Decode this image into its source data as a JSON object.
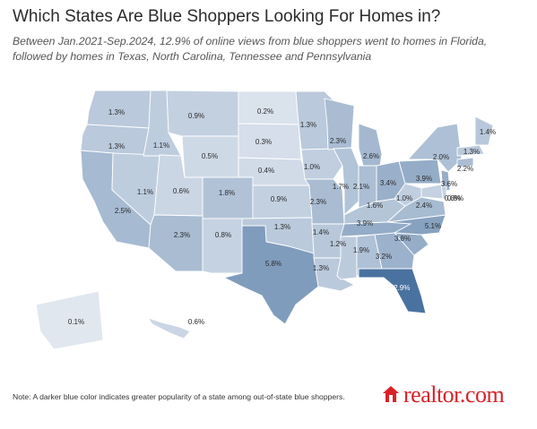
{
  "title": "Which States Are Blue Shoppers Looking For Homes in?",
  "subtitle": "Between Jan.2021-Sep.2024, 12.9% of online views from blue shoppers went to homes in Florida, followed by homes in Texas, North Carolina, Tennessee and Pennsylvania",
  "note": "Note: A darker blue color indicates greater popularity of a state among out-of-state blue shoppers.",
  "logo": {
    "text": "realtor.com",
    "icon": "house-icon",
    "color": "#d92228"
  },
  "color_scale": {
    "low": "#eef2f7",
    "high": "#4a72a0",
    "max_value": 12.9
  },
  "regions": {
    "WA": {
      "label": "1.3%",
      "value": 1.3
    },
    "OR": {
      "label": "1.3%",
      "value": 1.3
    },
    "CA": {
      "label": "2.5%",
      "value": 2.5
    },
    "NV": {
      "label": "1.1%",
      "value": 1.1
    },
    "ID": {
      "label": "1.1%",
      "value": 1.1
    },
    "MT": {
      "label": "0.9%",
      "value": 0.9
    },
    "WY": {
      "label": "0.5%",
      "value": 0.5
    },
    "UT": {
      "label": "0.6%",
      "value": 0.6
    },
    "AZ": {
      "label": "2.3%",
      "value": 2.3
    },
    "CO": {
      "label": "1.8%",
      "value": 1.8
    },
    "NM": {
      "label": "0.8%",
      "value": 0.8
    },
    "ND": {
      "label": "0.2%",
      "value": 0.2
    },
    "SD": {
      "label": "0.3%",
      "value": 0.3
    },
    "NE": {
      "label": "0.4%",
      "value": 0.4
    },
    "KS": {
      "label": "0.9%",
      "value": 0.9
    },
    "OK": {
      "label": "1.3%",
      "value": 1.3
    },
    "TX": {
      "label": "5.8%",
      "value": 5.8
    },
    "MN": {
      "label": "1.3%",
      "value": 1.3
    },
    "IA": {
      "label": "1.0%",
      "value": 1.0
    },
    "MO": {
      "label": "2.3%",
      "value": 2.3
    },
    "AR": {
      "label": "1.4%",
      "value": 1.4
    },
    "LA": {
      "label": "1.3%",
      "value": 1.3
    },
    "WI": {
      "label": "2.3%",
      "value": 2.3
    },
    "IL": {
      "label": "1.7%",
      "value": 1.7
    },
    "MI": {
      "label": "2.6%",
      "value": 2.6
    },
    "IN": {
      "label": "2.1%",
      "value": 2.1
    },
    "OH": {
      "label": "3.4%",
      "value": 3.4
    },
    "KY": {
      "label": "1.6%",
      "value": 1.6
    },
    "TN": {
      "label": "3.9%",
      "value": 3.9
    },
    "MS": {
      "label": "1.2%",
      "value": 1.2
    },
    "AL": {
      "label": "1.9%",
      "value": 1.9
    },
    "GA": {
      "label": "3.2%",
      "value": 3.2
    },
    "FL": {
      "label": "12.9%",
      "value": 12.9
    },
    "SC": {
      "label": "3.8%",
      "value": 3.8
    },
    "NC": {
      "label": "5.1%",
      "value": 5.1
    },
    "VA": {
      "label": "2.4%",
      "value": 2.4
    },
    "WV": {
      "label": "1.0%",
      "value": 1.0
    },
    "PA": {
      "label": "3.9%",
      "value": 3.9
    },
    "NY": {
      "label": "2.0%",
      "value": 2.0
    },
    "NJ": {
      "label": "3.6%",
      "value": 3.6
    },
    "DE": {
      "label": "0.8%",
      "value": 0.8
    },
    "MD": {
      "label": "0.8%",
      "value": 0.8
    },
    "CT": {
      "label": "2.2%",
      "value": 2.2
    },
    "MA": {
      "label": "1.3%",
      "value": 1.3
    },
    "ME": {
      "label": "1.4%",
      "value": 1.4
    },
    "AK": {
      "label": "0.1%",
      "value": 0.1
    },
    "HI": {
      "label": "0.6%",
      "value": 0.6
    }
  }
}
